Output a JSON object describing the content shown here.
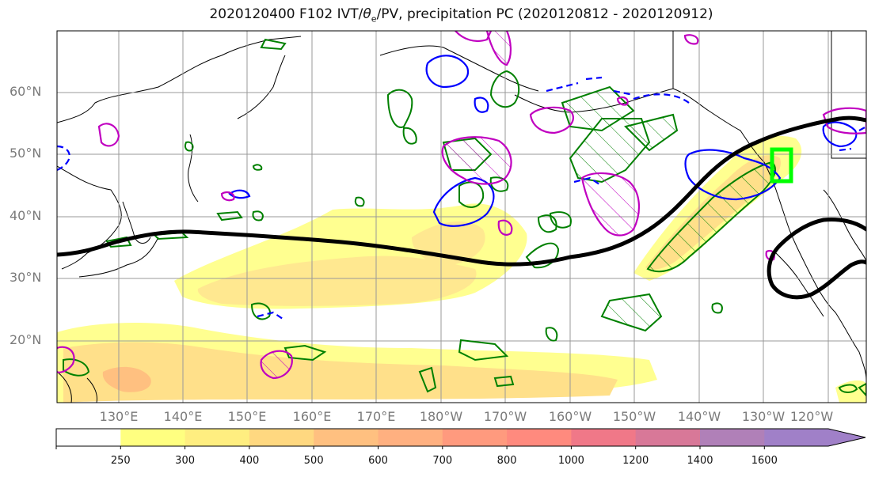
{
  "title": {
    "prefix": "2020120400 F102 IVT/",
    "theta": "θ",
    "theta_sub": "e",
    "suffix": "/PV, precipitation PC (2020120812 - 2020120912)"
  },
  "lat_labels": [
    "60°N",
    "50°N",
    "40°N",
    "30°N",
    "20°N"
  ],
  "lon_labels": [
    "130°E",
    "140°E",
    "150°E",
    "160°E",
    "170°E",
    "180°W",
    "170°W",
    "160°W",
    "150°W",
    "140°W",
    "130°W",
    "120°W"
  ],
  "colorbar": {
    "ticks": [
      "250",
      "300",
      "400",
      "500",
      "600",
      "700",
      "800",
      "1000",
      "1200",
      "1400",
      "1600"
    ],
    "colors": [
      "#ffffff",
      "#ffff80",
      "#ffee80",
      "#ffd880",
      "#ffc080",
      "#ffb080",
      "#ff9a7e",
      "#ff8a7e",
      "#f07888",
      "#d87898",
      "#b080b8",
      "#a080c8"
    ]
  },
  "colors": {
    "jet_contour": "#000000",
    "green_contour": "#008000",
    "blue_contour": "#0000ff",
    "magenta_contour": "#c000c0",
    "target_box": "#00ff00",
    "ivt_fill": "#ffee80"
  }
}
